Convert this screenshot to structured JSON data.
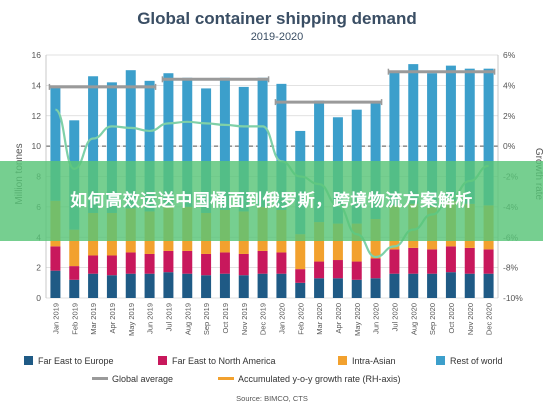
{
  "chart_data": {
    "type": "bar",
    "title": "Global container shipping demand",
    "subtitle": "2019-2020",
    "ylabel": "Million tonnes",
    "y2label": "Growth rate",
    "ylim": [
      0,
      16
    ],
    "y2lim": [
      -10,
      6
    ],
    "yticks": [
      0,
      2,
      4,
      6,
      8,
      10,
      12,
      14,
      16
    ],
    "y2ticks": [
      "-10%",
      "-8%",
      "-6%",
      "-4%",
      "-2%",
      "0%",
      "2%",
      "4%",
      "6%"
    ],
    "y2tick_values": [
      -10,
      -8,
      -6,
      -4,
      -2,
      0,
      2,
      4,
      6
    ],
    "grid": true,
    "legend_position": "bottom",
    "categories": [
      "Jan 2019",
      "Feb 2019",
      "Mar 2019",
      "Apr 2019",
      "May 2019",
      "Jun 2019",
      "Jul 2019",
      "Aug 2019",
      "Sep 2019",
      "Oct 2019",
      "Nov 2019",
      "Dec 2019",
      "Jan 2020",
      "Feb 2020",
      "Mar 2020",
      "Apr 2020",
      "May 2020",
      "Jun 2020",
      "Jul 2020",
      "Aug 2020",
      "Sep 2020",
      "Oct 2020",
      "Nov 2020",
      "Dec 2020"
    ],
    "series": [
      {
        "name": "Far East to Europe",
        "color": "#1f5a85",
        "values": [
          1.8,
          1.2,
          1.6,
          1.5,
          1.6,
          1.6,
          1.7,
          1.6,
          1.5,
          1.6,
          1.5,
          1.6,
          1.6,
          1.0,
          1.3,
          1.3,
          1.2,
          1.3,
          1.6,
          1.6,
          1.6,
          1.7,
          1.6,
          1.6
        ]
      },
      {
        "name": "Far East to North America",
        "color": "#c8185c",
        "values": [
          1.6,
          0.9,
          1.2,
          1.3,
          1.4,
          1.3,
          1.4,
          1.5,
          1.4,
          1.4,
          1.4,
          1.5,
          1.4,
          0.9,
          1.1,
          1.2,
          1.2,
          1.3,
          1.6,
          1.7,
          1.6,
          1.7,
          1.7,
          1.6
        ]
      },
      {
        "name": "Intra-Asian",
        "color": "#f2a12e",
        "values": [
          3.0,
          2.4,
          2.8,
          2.8,
          2.9,
          2.8,
          3.0,
          2.9,
          2.7,
          2.8,
          2.8,
          2.9,
          2.8,
          2.3,
          2.6,
          2.4,
          2.5,
          2.6,
          2.9,
          2.9,
          2.8,
          3.0,
          2.9,
          2.9
        ]
      },
      {
        "name": "Rest of world",
        "color": "#3c9fcb",
        "values": [
          7.5,
          7.2,
          9.0,
          8.6,
          9.1,
          8.6,
          8.7,
          8.5,
          8.2,
          8.7,
          8.2,
          8.5,
          8.3,
          6.8,
          8.0,
          7.0,
          7.5,
          7.7,
          8.8,
          9.2,
          8.8,
          8.9,
          8.9,
          9.0
        ]
      }
    ],
    "global_average": {
      "name": "Global average",
      "color": "#9a9a9a",
      "segments": [
        {
          "from": "Jan 2019",
          "to": "Jun 2019",
          "value": 13.9
        },
        {
          "from": "Jul 2019",
          "to": "Dec 2019",
          "value": 14.4
        },
        {
          "from": "Jan 2020",
          "to": "Jun 2020",
          "value": 12.9
        },
        {
          "from": "Jul 2020",
          "to": "Dec 2020",
          "value": 14.9
        }
      ]
    },
    "growth_rate": {
      "name": "Accumulated y-o-y growth rate (RH-axis)",
      "color": "#f2a12e",
      "line_color": "#7fd0a8",
      "values": [
        2.4,
        -1.5,
        0.5,
        1.3,
        1.2,
        1.0,
        1.5,
        1.6,
        1.5,
        1.4,
        1.3,
        1.3,
        -1.0,
        -2.0,
        -2.5,
        -3.9,
        -5.8,
        -7.3,
        -6.6,
        -5.5,
        -4.5,
        -3.4,
        -2.3,
        -1.3
      ]
    },
    "legend": [
      {
        "label": "Far East to Europe",
        "color": "#1f5a85",
        "kind": "box"
      },
      {
        "label": "Far East to North America",
        "color": "#c8185c",
        "kind": "box"
      },
      {
        "label": "Intra-Asian",
        "color": "#f2a12e",
        "kind": "box"
      },
      {
        "label": "Rest of world",
        "color": "#3c9fcb",
        "kind": "box"
      },
      {
        "label": "Global average",
        "color": "#9a9a9a",
        "kind": "line"
      },
      {
        "label": "Accumulated y-o-y growth rate (RH-axis)",
        "color": "#f2a12e",
        "kind": "line"
      }
    ],
    "source": "Source: BIMCO, CTS"
  },
  "banner": {
    "text": "如何高效运送中国桶面到俄罗斯，跨境物流方案解析"
  }
}
